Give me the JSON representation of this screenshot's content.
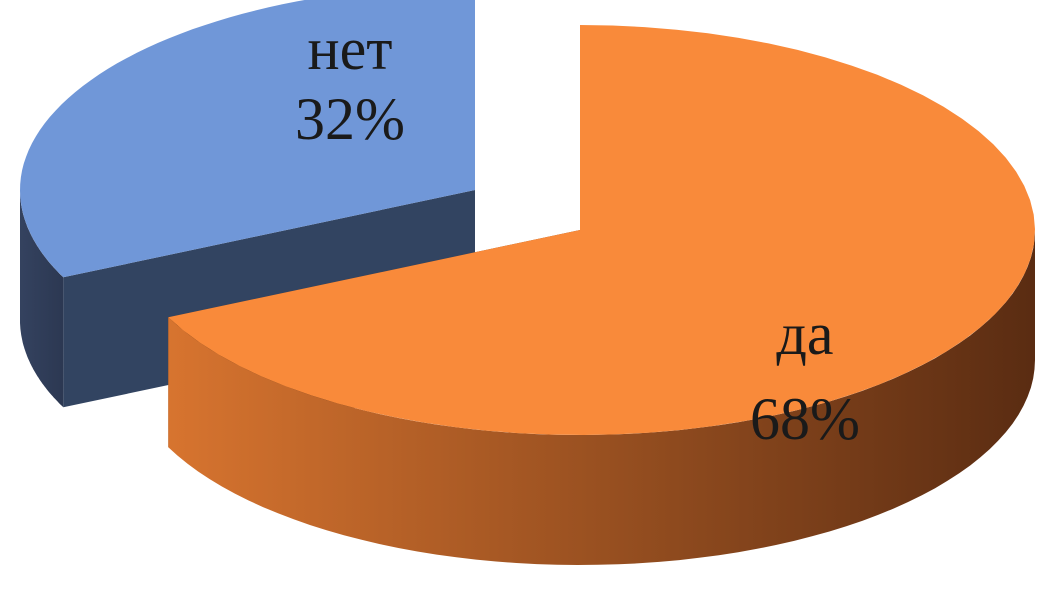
{
  "chart_data": {
    "type": "pie",
    "categories": [
      "да",
      "нет"
    ],
    "values": [
      68,
      32
    ],
    "value_labels": [
      "68%",
      "32%"
    ],
    "colors": [
      "#f98a3a",
      "#7097d8"
    ]
  }
}
